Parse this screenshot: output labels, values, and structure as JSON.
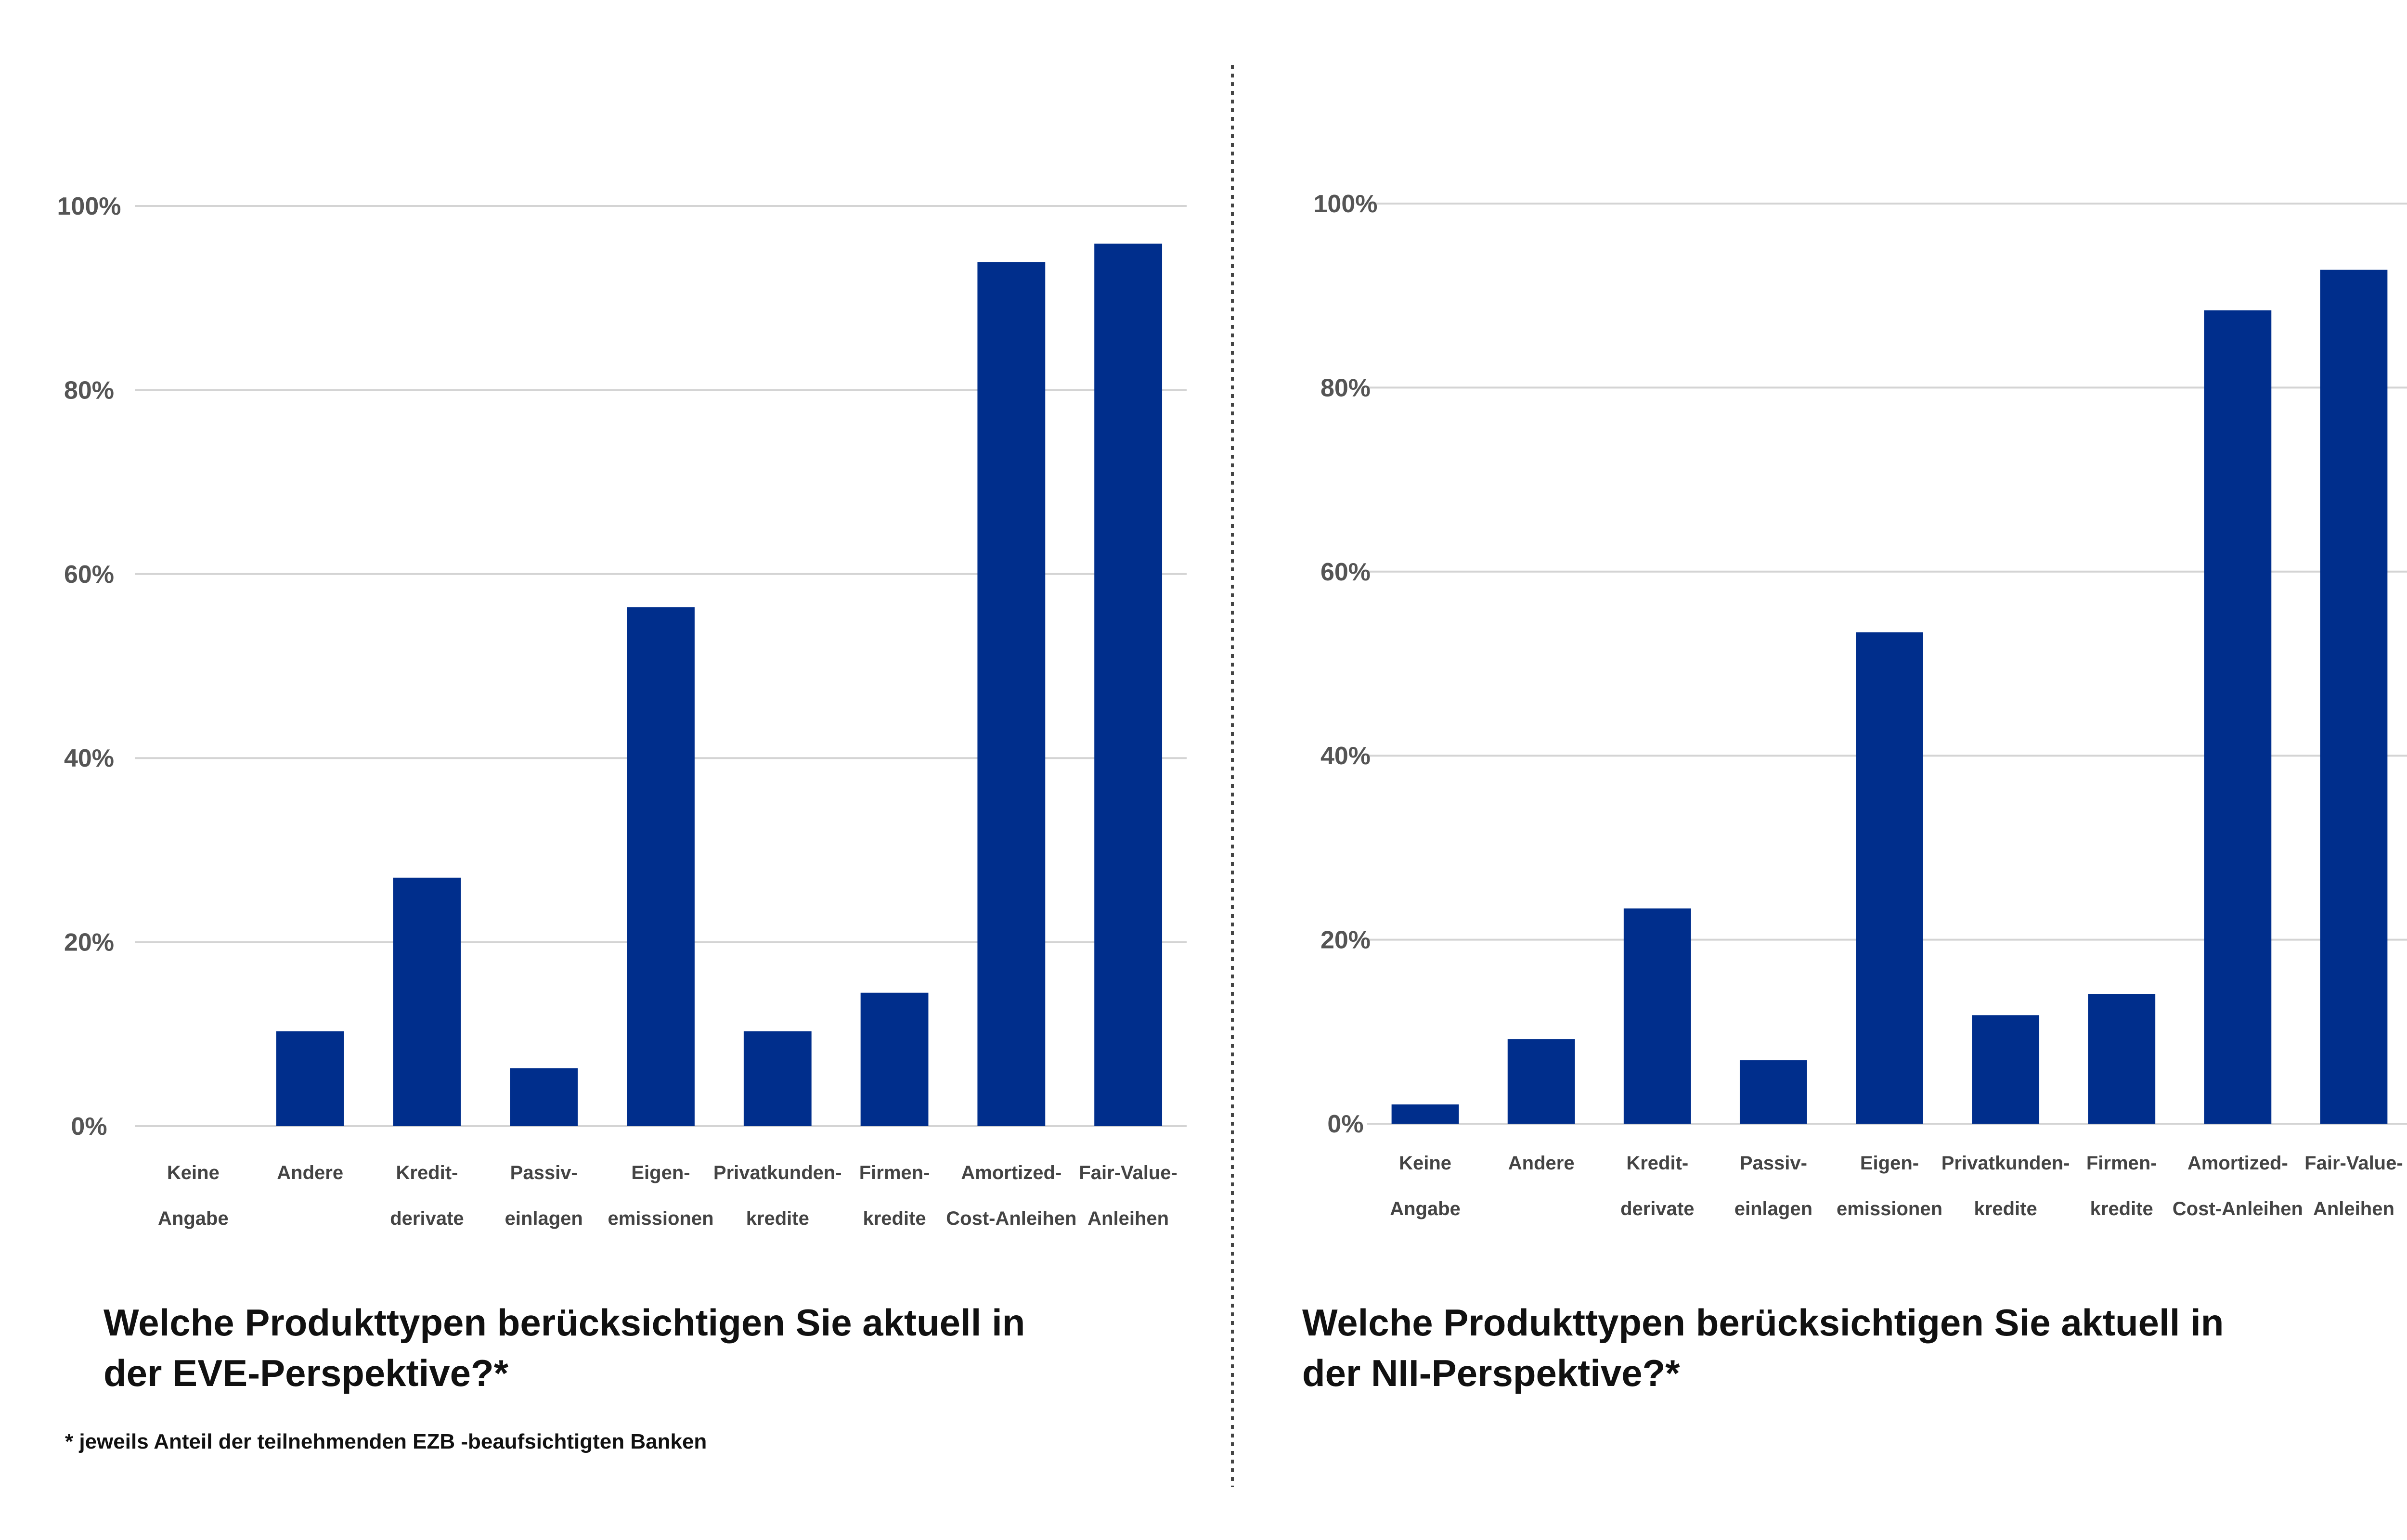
{
  "chart_data": [
    {
      "type": "bar",
      "title": [
        "Welche Produkttypen berücksichtigen Sie aktuell in",
        "der EVE-Perspektive?*"
      ],
      "categories": [
        [
          "Keine",
          "Angabe"
        ],
        [
          "Andere"
        ],
        [
          "Kredit-",
          "derivate"
        ],
        [
          "Passiv-",
          "einlagen"
        ],
        [
          "Eigen-",
          "emissionen"
        ],
        [
          "Privatkunden-",
          "kredite"
        ],
        [
          "Firmen-",
          "kredite"
        ],
        [
          "Amortized-",
          "Cost-Anleihen"
        ],
        [
          "Fair-Value-",
          "Anleihen"
        ]
      ],
      "values": [
        0,
        10.3,
        27,
        6.3,
        56.4,
        10.3,
        14.5,
        93.9,
        95.9
      ],
      "ylim": [
        0,
        100
      ],
      "yticks": [
        "0%",
        "20%",
        "40%",
        "60%",
        "80%",
        "100%"
      ],
      "grid": true,
      "bar_color": "#002e8c"
    },
    {
      "type": "bar",
      "title": [
        "Welche Produkttypen berücksichtigen Sie aktuell in",
        "der NII-Perspektive?*"
      ],
      "categories": [
        [
          "Keine",
          "Angabe"
        ],
        [
          "Andere"
        ],
        [
          "Kredit-",
          "derivate"
        ],
        [
          "Passiv-",
          "einlagen"
        ],
        [
          "Eigen-",
          "emissionen"
        ],
        [
          "Privatkunden-",
          "kredite"
        ],
        [
          "Firmen-",
          "kredite"
        ],
        [
          "Amortized-",
          "Cost-Anleihen"
        ],
        [
          "Fair-Value-",
          "Anleihen"
        ]
      ],
      "values": [
        2.1,
        9.2,
        23.4,
        6.9,
        53.4,
        11.8,
        14.1,
        88.4,
        92.8
      ],
      "ylim": [
        0,
        100
      ],
      "yticks": [
        "0%",
        "20%",
        "40%",
        "60%",
        "80%",
        "100%"
      ],
      "grid": true,
      "bar_color": "#002e8c"
    }
  ],
  "footnote": "* jeweils Anteil der teilnehmenden EZB   -beaufsichtigten Banken"
}
